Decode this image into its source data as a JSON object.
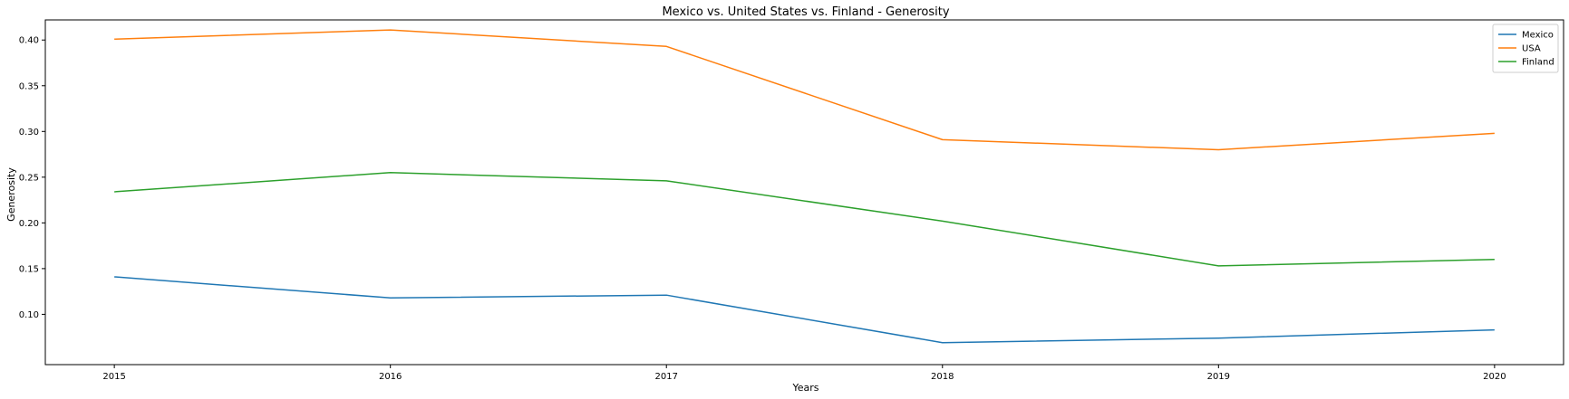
{
  "chart_data": {
    "type": "line",
    "title": "Mexico vs. United States vs. Finland - Generosity",
    "xlabel": "Years",
    "ylabel": "Generosity",
    "x": [
      2015,
      2016,
      2017,
      2018,
      2019,
      2020
    ],
    "x_tick_labels": [
      "2015",
      "2016",
      "2017",
      "2018",
      "2019",
      "2020"
    ],
    "xlim": [
      2014.75,
      2020.25
    ],
    "y_ticks": [
      0.1,
      0.15,
      0.2,
      0.25,
      0.3,
      0.35,
      0.4
    ],
    "y_tick_labels": [
      "0.10",
      "0.15",
      "0.20",
      "0.25",
      "0.30",
      "0.35",
      "0.40"
    ],
    "ylim": [
      0.045,
      0.422
    ],
    "grid": false,
    "legend_position": "top-right",
    "series": [
      {
        "name": "Mexico",
        "color": "#1f77b4",
        "values": [
          0.141,
          0.118,
          0.121,
          0.069,
          0.074,
          0.083
        ]
      },
      {
        "name": "USA",
        "color": "#ff7f0e",
        "values": [
          0.401,
          0.411,
          0.393,
          0.291,
          0.28,
          0.298
        ]
      },
      {
        "name": "Finland",
        "color": "#2ca02c",
        "values": [
          0.234,
          0.255,
          0.246,
          0.202,
          0.153,
          0.16
        ]
      }
    ]
  }
}
